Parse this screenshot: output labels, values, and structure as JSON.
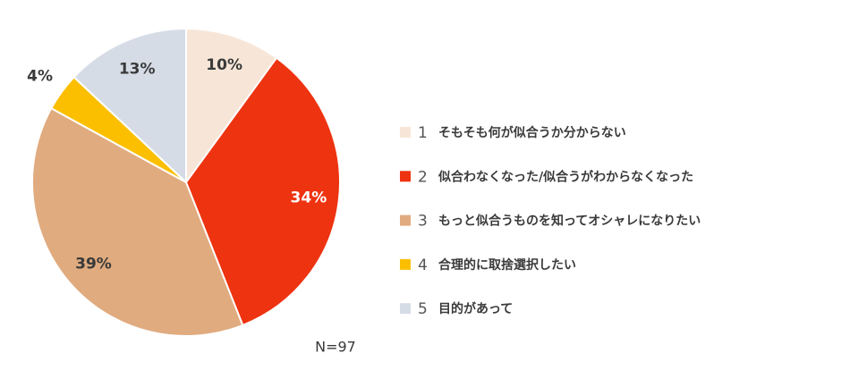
{
  "chart_data": {
    "type": "pie",
    "categories": [
      "そもそも何が似合うか分からない",
      "似合わなくなった/似合うがわからなくなった",
      "もっと似合うものを知ってオシャレになりたい",
      "合理的に取捨選択したい",
      "目的があって"
    ],
    "category_numbers": [
      "1",
      "2",
      "3",
      "4",
      "5"
    ],
    "values": [
      10,
      34,
      39,
      4,
      13
    ],
    "value_labels": [
      "10%",
      "34%",
      "39%",
      "4%",
      "13%"
    ],
    "colors": [
      "#f7e6d8",
      "#ee3310",
      "#e0ab7f",
      "#fbbf00",
      "#d6dce6"
    ],
    "label_colors": [
      "#3a3a3a",
      "#ffffff",
      "#3a3a3a",
      "#3a3a3a",
      "#3a3a3a"
    ],
    "note": "N=97",
    "legend": "right"
  }
}
